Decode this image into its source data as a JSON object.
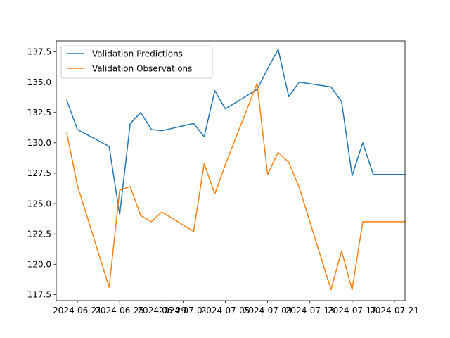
{
  "chart_data": {
    "type": "line",
    "title": "",
    "xlabel": "",
    "ylabel": "",
    "x_tick_labels": [
      "2024-06-21",
      "2024-06-25",
      "2024-06-29",
      "2024-07-01",
      "2024-07-05",
      "2024-07-09",
      "2024-07-13",
      "2024-07-17",
      "2024-07-21"
    ],
    "x_tick_dates": [
      "2024-06-21",
      "2024-06-25",
      "2024-06-29",
      "2024-07-01",
      "2024-07-05",
      "2024-07-09",
      "2024-07-13",
      "2024-07-17",
      "2024-07-21"
    ],
    "y_ticks": [
      117.5,
      120.0,
      122.5,
      125.0,
      127.5,
      130.0,
      132.5,
      135.0,
      137.5
    ],
    "y_tick_labels": [
      "117.5",
      "120.0",
      "122.5",
      "125.0",
      "127.5",
      "130.0",
      "132.5",
      "135.0",
      "137.5"
    ],
    "xlim": [
      "2024-06-19",
      "2024-07-22"
    ],
    "ylim": [
      117.0,
      138.4
    ],
    "grid": false,
    "legend_position": "upper-left",
    "dates": [
      "2024-06-20",
      "2024-06-21",
      "2024-06-24",
      "2024-06-25",
      "2024-06-26",
      "2024-06-27",
      "2024-06-28",
      "2024-06-29",
      "2024-07-02",
      "2024-07-03",
      "2024-07-04",
      "2024-07-05",
      "2024-07-08",
      "2024-07-09",
      "2024-07-10",
      "2024-07-11",
      "2024-07-12",
      "2024-07-15",
      "2024-07-16",
      "2024-07-17",
      "2024-07-18",
      "2024-07-19",
      "2024-07-22"
    ],
    "series": [
      {
        "name": "Validation Predictions",
        "color": "#1f77b4",
        "values": [
          133.5,
          131.1,
          129.7,
          124.1,
          131.6,
          132.5,
          131.1,
          131.0,
          131.6,
          130.5,
          134.3,
          132.8,
          134.4,
          136.1,
          137.7,
          133.8,
          135.0,
          134.6,
          133.4,
          127.3,
          130.0,
          127.4,
          127.4
        ]
      },
      {
        "name": "Validation Observations",
        "color": "#ff7f0e",
        "values": [
          130.8,
          126.5,
          118.1,
          126.1,
          126.4,
          124.0,
          123.5,
          124.3,
          122.7,
          128.3,
          125.8,
          128.2,
          134.9,
          127.4,
          129.2,
          128.4,
          126.3,
          117.9,
          121.1,
          117.9,
          123.5,
          123.5,
          123.5
        ]
      }
    ]
  }
}
